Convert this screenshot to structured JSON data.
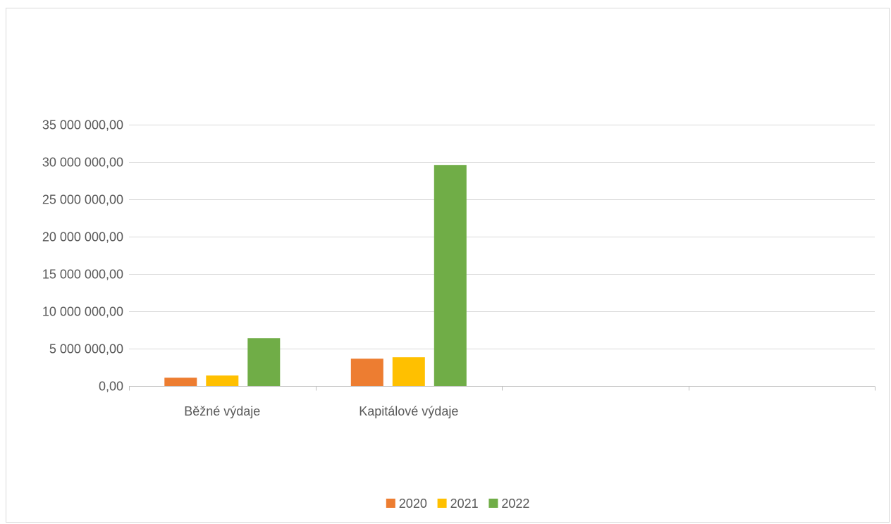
{
  "chart_data": {
    "type": "bar",
    "categories": [
      "Běžné výdaje",
      "Kapitálové výdaje",
      "",
      ""
    ],
    "series": [
      {
        "name": "2020",
        "color": "#ED7D31",
        "values": [
          1100000,
          3650000,
          null,
          null
        ]
      },
      {
        "name": "2021",
        "color": "#FFC000",
        "values": [
          1400000,
          3850000,
          null,
          null
        ]
      },
      {
        "name": "2022",
        "color": "#70AD47",
        "values": [
          6400000,
          29600000,
          null,
          null
        ]
      }
    ],
    "ylim": [
      0,
      35000000
    ],
    "y_ticks": [
      0,
      5000000,
      10000000,
      15000000,
      20000000,
      25000000,
      30000000,
      35000000
    ],
    "y_tick_labels": [
      "0,00",
      "5 000 000,00",
      "10 000 000,00",
      "15 000 000,00",
      "20 000 000,00",
      "25 000 000,00",
      "30 000 000,00",
      "35 000 000,00"
    ],
    "title": "",
    "xlabel": "",
    "ylabel": "",
    "grid": true,
    "legend_position": "bottom",
    "gridline_color": "#D9D9D9",
    "axis_color": "#BFBFBF"
  }
}
